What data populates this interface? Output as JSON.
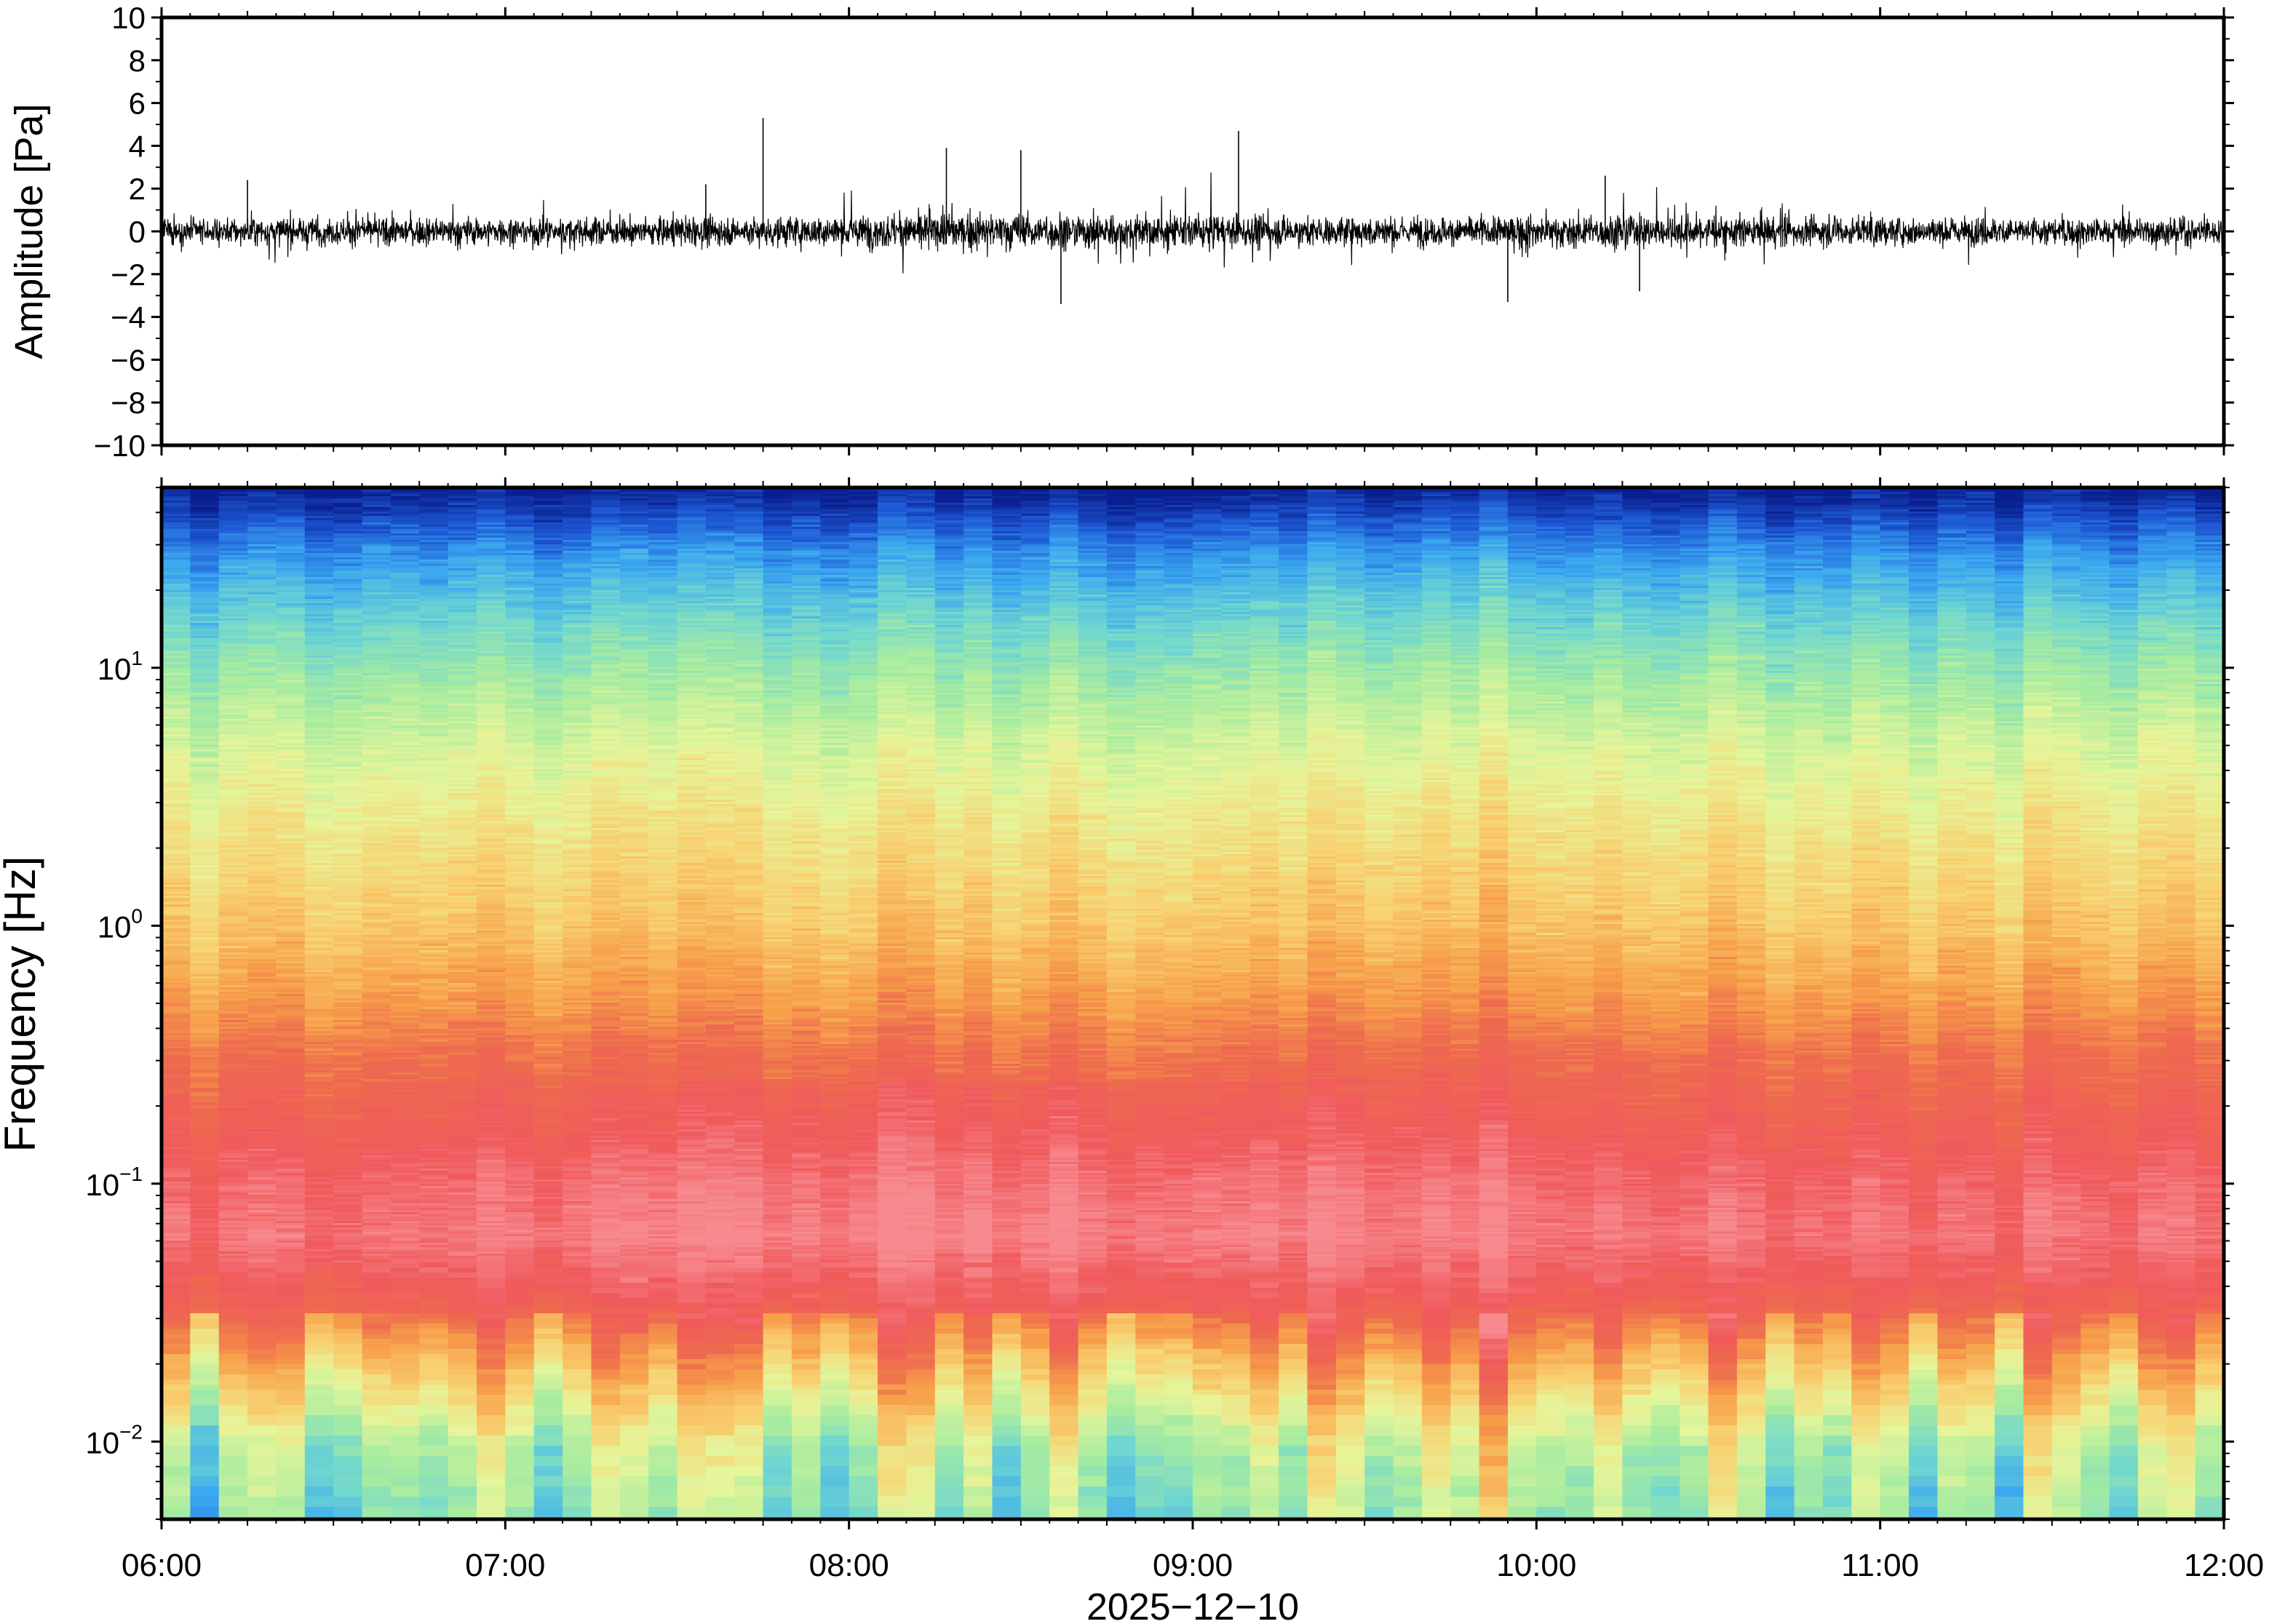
{
  "chart_data": [
    {
      "type": "line",
      "title": "",
      "xlabel": "",
      "ylabel": "Amplitude [Pa]",
      "ylim": [
        -10,
        10
      ],
      "y_ticks": [
        "10",
        "8",
        "6",
        "4",
        "2",
        "0",
        "−2",
        "−4",
        "−6",
        "−8",
        "−10"
      ],
      "x_range": [
        "06:00",
        "12:00"
      ],
      "grid": false,
      "legend": "none",
      "series": [
        {
          "color": "#000000",
          "description_values": {
            "baseline_noise_amplitude": 0.8,
            "typical_peak_range": [
              -2.5,
              2.5
            ],
            "spikes": [
              {
                "time": "06:15",
                "value": 2.4
              },
              {
                "time": "07:35",
                "value": 2.2
              },
              {
                "time": "07:45",
                "value": 5.3
              },
              {
                "time": "08:17",
                "value": 3.9
              },
              {
                "time": "08:30",
                "value": 3.8
              },
              {
                "time": "08:37",
                "value": -3.4
              },
              {
                "time": "09:08",
                "value": 4.7
              },
              {
                "time": "09:55",
                "value": -3.3
              },
              {
                "time": "10:12",
                "value": 2.6
              },
              {
                "time": "10:18",
                "value": -2.8
              }
            ]
          }
        }
      ]
    },
    {
      "type": "heatmap",
      "title": "",
      "xlabel": "2025−12−10",
      "ylabel": "Frequency [Hz]",
      "y_scale": "log",
      "ylim": [
        0.005,
        50
      ],
      "y_ticks": [
        {
          "base": "10",
          "exp": "1",
          "value": 10
        },
        {
          "base": "10",
          "exp": "0",
          "value": 1
        },
        {
          "base": "10",
          "exp": "−1",
          "value": 0.1
        },
        {
          "base": "10",
          "exp": "−2",
          "value": 0.01
        }
      ],
      "x_ticks": [
        "06:00",
        "07:00",
        "08:00",
        "09:00",
        "10:00",
        "11:00",
        "12:00"
      ],
      "x_range": [
        "06:00",
        "12:00"
      ],
      "colormap": [
        "#0a1f8f",
        "#1e5bd6",
        "#3aa7f0",
        "#6fd6d0",
        "#a8eca0",
        "#e6f59a",
        "#f8d070",
        "#f7a04a",
        "#ee6b4e",
        "#f05a5c",
        "#f78a8f"
      ],
      "time_columns": 72,
      "band_profile": {
        "log10_frequency": [
          1.7,
          1.45,
          1.2,
          1.0,
          0.7,
          0.4,
          0.0,
          -0.3,
          -0.5,
          -0.75,
          -1.0,
          -1.2,
          -1.45,
          -1.65,
          -1.85,
          -2.0,
          -2.3
        ],
        "level": [
          0.0,
          0.18,
          0.3,
          0.38,
          0.48,
          0.55,
          0.63,
          0.72,
          0.8,
          0.86,
          0.93,
          0.96,
          0.86,
          0.7,
          0.55,
          0.45,
          0.38
        ]
      }
    }
  ]
}
